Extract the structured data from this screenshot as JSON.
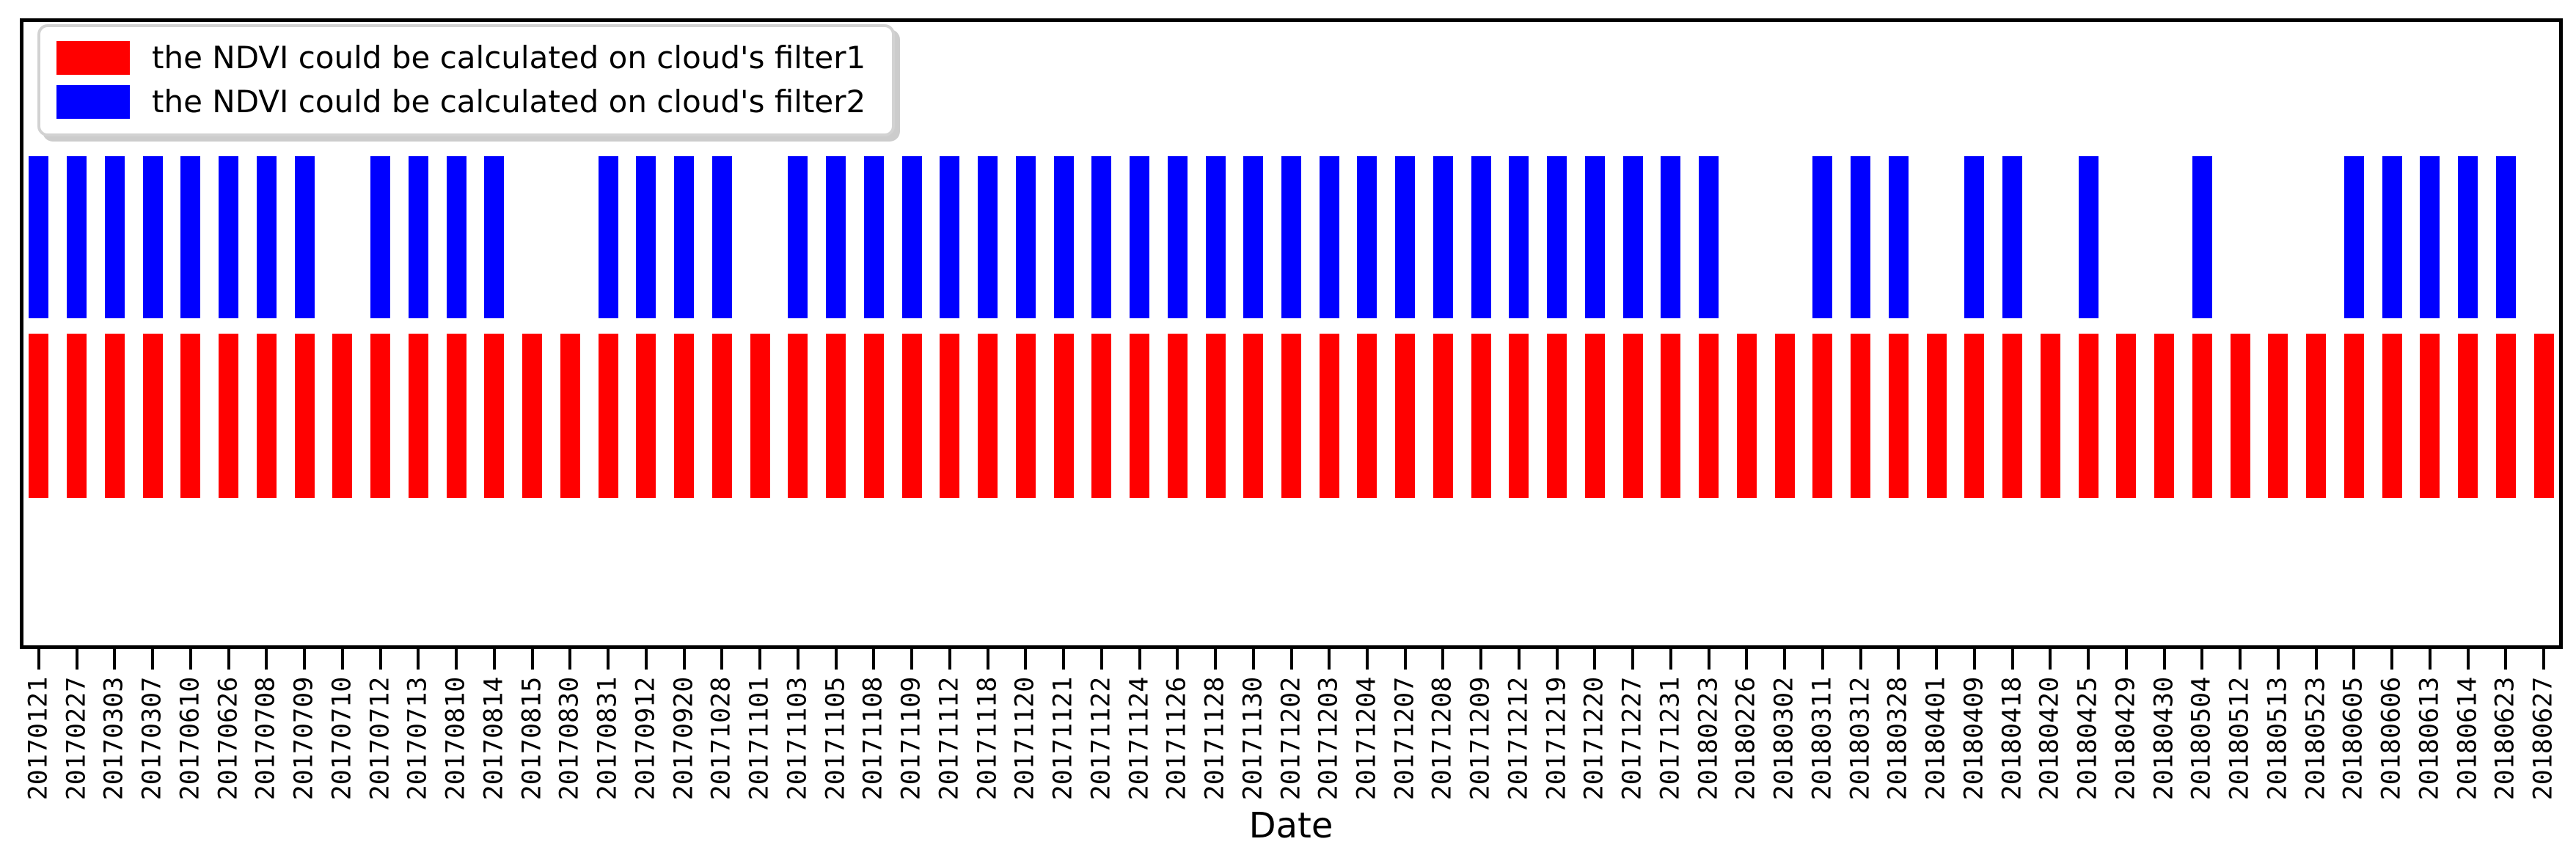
{
  "chart_data": {
    "type": "bar",
    "title": "",
    "xlabel": "Date",
    "ylabel": "",
    "legend_position": "upper left",
    "grid": false,
    "y_axis_ticks_visible": false,
    "bar_meaning": "presence/absence per date; value 1 = bar drawn, 0 = no bar",
    "categories": [
      "20170121",
      "20170227",
      "20170303",
      "20170307",
      "20170610",
      "20170626",
      "20170708",
      "20170709",
      "20170710",
      "20170712",
      "20170713",
      "20170810",
      "20170814",
      "20170815",
      "20170830",
      "20170831",
      "20170912",
      "20170920",
      "20171028",
      "20171101",
      "20171103",
      "20171105",
      "20171108",
      "20171109",
      "20171112",
      "20171118",
      "20171120",
      "20171121",
      "20171122",
      "20171124",
      "20171126",
      "20171128",
      "20171130",
      "20171202",
      "20171203",
      "20171204",
      "20171207",
      "20171208",
      "20171209",
      "20171212",
      "20171219",
      "20171220",
      "20171227",
      "20171231",
      "20180223",
      "20180226",
      "20180302",
      "20180311",
      "20180312",
      "20180328",
      "20180401",
      "20180409",
      "20180418",
      "20180420",
      "20180425",
      "20180429",
      "20180430",
      "20180504",
      "20180512",
      "20180513",
      "20180523",
      "20180605",
      "20180606",
      "20180613",
      "20180614",
      "20180623",
      "20180627"
    ],
    "series": [
      {
        "name": "the NDVI could be calculated on cloud's filter1",
        "color": "#ff0000",
        "row": "lower",
        "values": [
          1,
          1,
          1,
          1,
          1,
          1,
          1,
          1,
          1,
          1,
          1,
          1,
          1,
          1,
          1,
          1,
          1,
          1,
          1,
          1,
          1,
          1,
          1,
          1,
          1,
          1,
          1,
          1,
          1,
          1,
          1,
          1,
          1,
          1,
          1,
          1,
          1,
          1,
          1,
          1,
          1,
          1,
          1,
          1,
          1,
          1,
          1,
          1,
          1,
          1,
          1,
          1,
          1,
          1,
          1,
          1,
          1,
          1,
          1,
          1,
          1,
          1,
          1,
          1,
          1,
          1,
          1
        ]
      },
      {
        "name": "the NDVI could be calculated on cloud's filter2",
        "color": "#0000ff",
        "row": "upper",
        "values": [
          1,
          1,
          1,
          1,
          1,
          1,
          1,
          1,
          0,
          1,
          1,
          1,
          1,
          0,
          0,
          1,
          1,
          1,
          1,
          0,
          1,
          1,
          1,
          1,
          1,
          1,
          1,
          1,
          1,
          1,
          1,
          1,
          1,
          1,
          1,
          1,
          1,
          1,
          1,
          1,
          1,
          1,
          1,
          1,
          1,
          0,
          0,
          1,
          1,
          1,
          0,
          1,
          1,
          0,
          1,
          0,
          0,
          1,
          0,
          0,
          0,
          1,
          1,
          1,
          1,
          1,
          0
        ]
      }
    ]
  },
  "colors": {
    "filter1": "#ff0000",
    "filter2": "#0000ff",
    "frame": "#000000",
    "legend_border": "#d2d2d2",
    "background": "#ffffff"
  }
}
